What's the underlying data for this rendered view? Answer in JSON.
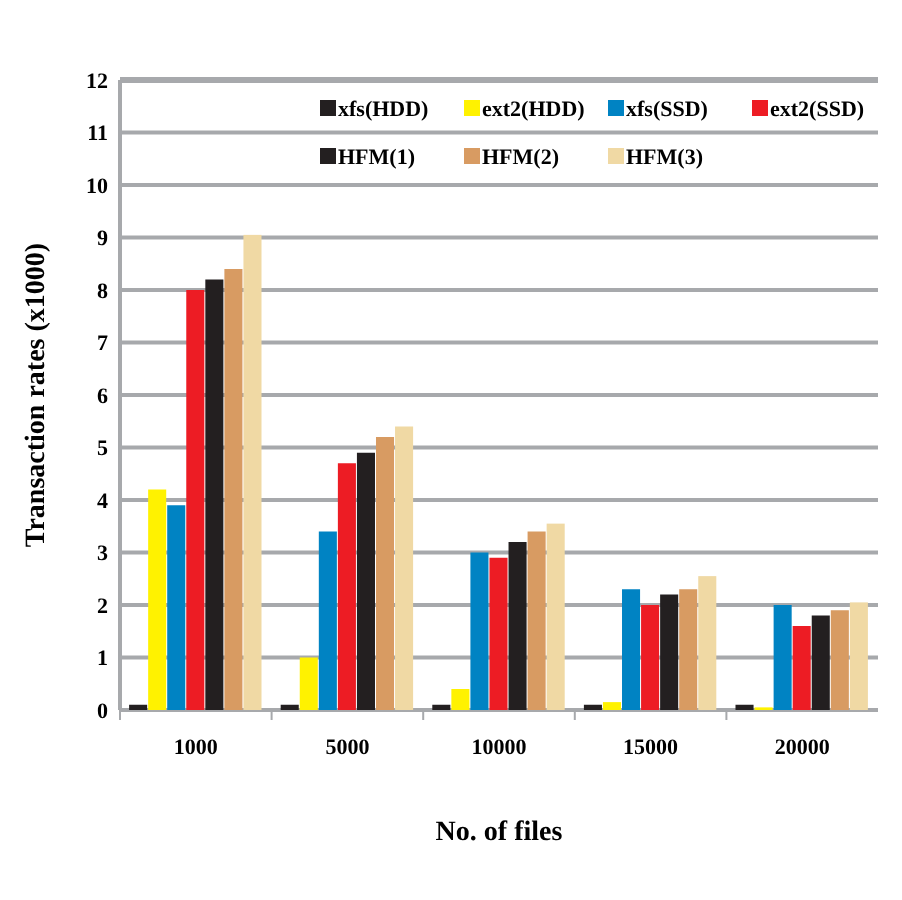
{
  "chart_data": {
    "type": "bar",
    "xlabel": "No. of files",
    "ylabel": "Transaction rates (x1000)",
    "categories": [
      "1000",
      "5000",
      "10000",
      "15000",
      "20000"
    ],
    "series": [
      {
        "name": "xfs(HDD)",
        "color": "#231f20",
        "values": [
          0.1,
          0.1,
          0.1,
          0.1,
          0.1
        ]
      },
      {
        "name": "ext2(HDD)",
        "color": "#fff200",
        "values": [
          4.2,
          1.0,
          0.4,
          0.15,
          0.05
        ]
      },
      {
        "name": "xfs(SSD)",
        "color": "#0083c3",
        "values": [
          3.9,
          3.4,
          3.0,
          2.3,
          2.0
        ]
      },
      {
        "name": "ext2(SSD)",
        "color": "#ed1c24",
        "values": [
          8.0,
          4.7,
          2.9,
          2.0,
          1.6
        ]
      },
      {
        "name": "HFM(1)",
        "color": "#231f20",
        "values": [
          8.2,
          4.9,
          3.2,
          2.2,
          1.8
        ]
      },
      {
        "name": "HFM(2)",
        "color": "#d89b62",
        "values": [
          8.4,
          5.2,
          3.4,
          2.3,
          1.9
        ]
      },
      {
        "name": "HFM(3)",
        "color": "#f0d9a4",
        "values": [
          9.05,
          5.4,
          3.55,
          2.55,
          2.05
        ]
      }
    ],
    "ylim": [
      0,
      12
    ],
    "yticks": [
      0,
      1,
      2,
      3,
      4,
      5,
      6,
      7,
      8,
      9,
      10,
      11,
      12
    ],
    "grid": "y",
    "legend": "top"
  }
}
